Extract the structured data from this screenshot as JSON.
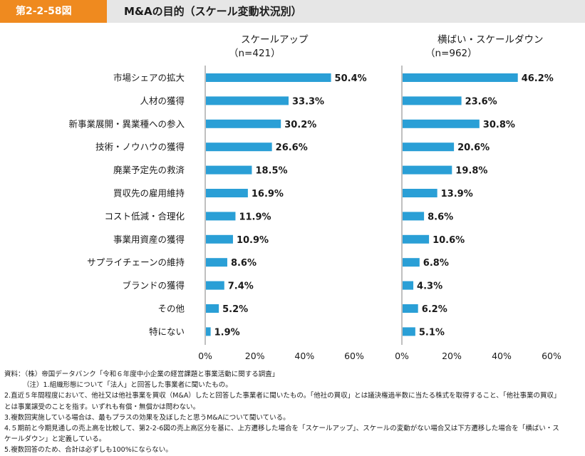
{
  "header": {
    "figure_number": "第2-2-58図",
    "title": "M&Aの目的（スケール変動状況別）"
  },
  "colors": {
    "bar": "#2a9fd6",
    "accent": "#ef8a1f",
    "header_bg": "#e6e6e6"
  },
  "chart_data": [
    {
      "type": "bar",
      "orientation": "horizontal",
      "title": "スケールアップ",
      "subtitle": "（n=421）",
      "categories": [
        "市場シェアの拡大",
        "人材の獲得",
        "新事業展開・異業種への参入",
        "技術・ノウハウの獲得",
        "廃業予定先の救済",
        "買収先の雇用維持",
        "コスト低減・合理化",
        "事業用資産の獲得",
        "サプライチェーンの維持",
        "ブランドの獲得",
        "その他",
        "特にない"
      ],
      "values": [
        50.4,
        33.3,
        30.2,
        26.6,
        18.5,
        16.9,
        11.9,
        10.9,
        8.6,
        7.4,
        5.2,
        1.9
      ],
      "value_labels": [
        "50.4%",
        "33.3%",
        "30.2%",
        "26.6%",
        "18.5%",
        "16.9%",
        "11.9%",
        "10.9%",
        "8.6%",
        "7.4%",
        "5.2%",
        "1.9%"
      ],
      "xlim": [
        0,
        60
      ],
      "xticks": [
        "0%",
        "20%",
        "40%",
        "60%"
      ]
    },
    {
      "type": "bar",
      "orientation": "horizontal",
      "title": "横ばい・スケールダウン",
      "subtitle": "（n=962）",
      "categories": [
        "市場シェアの拡大",
        "人材の獲得",
        "新事業展開・異業種への参入",
        "技術・ノウハウの獲得",
        "廃業予定先の救済",
        "買収先の雇用維持",
        "コスト低減・合理化",
        "事業用資産の獲得",
        "サプライチェーンの維持",
        "ブランドの獲得",
        "その他",
        "特にない"
      ],
      "values": [
        46.2,
        23.6,
        30.8,
        20.6,
        19.8,
        13.9,
        8.6,
        10.6,
        6.8,
        4.3,
        6.2,
        5.1
      ],
      "value_labels": [
        "46.2%",
        "23.6%",
        "30.8%",
        "20.6%",
        "19.8%",
        "13.9%",
        "8.6%",
        "10.6%",
        "6.8%",
        "4.3%",
        "6.2%",
        "5.1%"
      ],
      "xlim": [
        0,
        60
      ],
      "xticks": [
        "0%",
        "20%",
        "40%",
        "60%"
      ]
    }
  ],
  "notes": {
    "source": "資料：（株）帝国データバンク「令和６年度中小企業の経営課題と事業活動に関する調査」",
    "note1": "（注）1.組織形態について「法人」と回答した事業者に聞いたもの。",
    "note2": "2.直近５年間程度において、他社又は他社事業を買収（M&A）したと回答した事業者に聞いたもの。「他社の買収」とは議決権過半数に当たる株式を取得すること、「他社事業の買収」とは事業譲受のことを指す。いずれも有償・無償かは問わない。",
    "note3": "3.複数回実施している場合は、最もプラスの効果を及ぼしたと思うM&Aについて聞いている。",
    "note4": "4.５期前と今期見通しの売上高を比較して、第2-2-6図の売上高区分を基に、上方遷移した場合を「スケールアップ」、スケールの変動がない場合又は下方遷移した場合を「横ばい・スケールダウン」と定義している。",
    "note5": "5.複数回答のため、合計は必ずしも100%にならない。"
  }
}
